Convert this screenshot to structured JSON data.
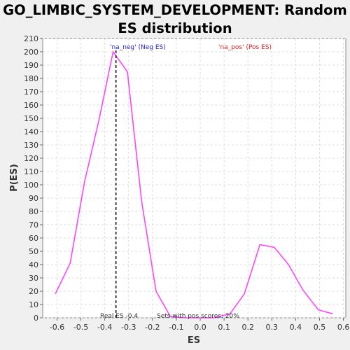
{
  "chart_data": {
    "type": "line",
    "title_line1": "GO_LIMBIC_SYSTEM_DEVELOPMENT: Random",
    "title_line2": "ES distribution",
    "xlabel": "ES",
    "ylabel": "P(ES)",
    "xlim": [
      -0.66,
      0.61
    ],
    "ylim": [
      0,
      210
    ],
    "x_ticks": [
      -0.6,
      -0.5,
      -0.4,
      -0.3,
      -0.2,
      -0.1,
      0.0,
      0.1,
      0.2,
      0.3,
      0.4,
      0.5,
      0.6
    ],
    "x_tick_labels": [
      "-0.6",
      "-0.5",
      "-0.4",
      "-0.3",
      "-0.2",
      "-0.1",
      "0.0",
      "0.1",
      "0.2",
      "0.3",
      "0.4",
      "0.5",
      "0.6"
    ],
    "y_ticks": [
      0,
      10,
      20,
      30,
      40,
      50,
      60,
      70,
      80,
      90,
      100,
      110,
      120,
      130,
      140,
      150,
      160,
      170,
      180,
      190,
      200,
      210
    ],
    "grid": true,
    "series": [
      {
        "color": "#ff44ff",
        "x": [
          -0.607,
          -0.545,
          -0.485,
          -0.425,
          -0.365,
          -0.305,
          -0.245,
          -0.185,
          -0.125,
          -0.065,
          0.0,
          0.06,
          0.125,
          0.185,
          0.25,
          0.31,
          0.37,
          0.43,
          0.495,
          0.555
        ],
        "y": [
          18,
          41,
          102,
          148,
          200,
          185,
          87,
          20,
          1,
          0,
          0,
          0,
          3,
          18,
          55,
          53,
          40,
          21,
          6,
          3
        ]
      }
    ],
    "real_es": -0.353,
    "legend": {
      "neg_label": "'na_neg' (Neg ES)",
      "neg_color": "#2222cc",
      "pos_label": "'na_pos' (Pos ES)",
      "pos_color": "#dd2222"
    },
    "annotations": {
      "real_es_text": "Real ES -0.4",
      "pos_scores_text": "Sets with pos scores: 20%"
    }
  }
}
